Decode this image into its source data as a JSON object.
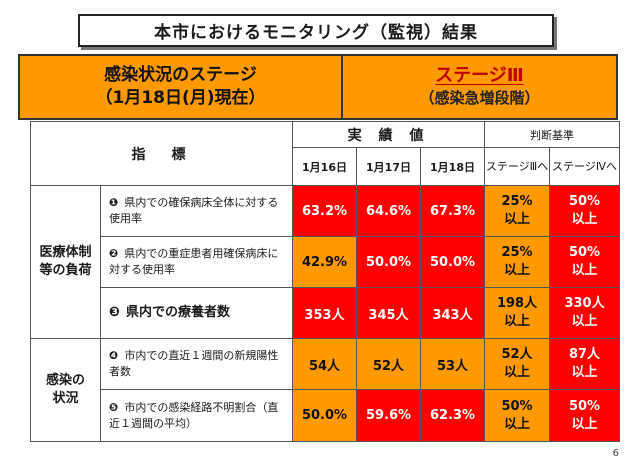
{
  "title": "本市におけるモニタリング（監視）結果",
  "banner": {
    "left_line1": "感染状況のステージ",
    "left_line2": "（1月18日(月)現在）",
    "stage_name": "ステージⅢ",
    "stage_sub": "（感染急増段階）"
  },
  "headers": {
    "indicator": "指　標",
    "actual": "実 績 値",
    "criteria": "判断基準",
    "dates": [
      "1月16日",
      "1月17日",
      "1月18日"
    ],
    "stage3_to": "ステージⅢへ",
    "stage4_to": "ステージⅣへ"
  },
  "categories": {
    "medical": [
      "医療体制",
      "等の負荷"
    ],
    "infection": [
      "感染の",
      "状況"
    ]
  },
  "rows": [
    {
      "num": "❶",
      "label": "県内での確保病床全体に対する使用率",
      "v1": "63.2%",
      "v2": "64.6%",
      "v3": "67.3%",
      "s3": [
        "25%",
        "以上"
      ],
      "s4": [
        "50%",
        "以上"
      ]
    },
    {
      "num": "❷",
      "label": "県内での重症患者用確保病床に対する使用率",
      "v1": "42.9%",
      "v2": "50.0%",
      "v3": "50.0%",
      "s3": [
        "25%",
        "以上"
      ],
      "s4": [
        "50%",
        "以上"
      ]
    },
    {
      "num": "❸",
      "label": "県内での療養者数",
      "v1": "353人",
      "v2": "345人",
      "v3": "343人",
      "s3": [
        "198人",
        "以上"
      ],
      "s4": [
        "330人",
        "以上"
      ]
    },
    {
      "num": "❹",
      "label": "市内での直近１週間の新規陽性者数",
      "v1": "54人",
      "v2": "52人",
      "v3": "53人",
      "s3": [
        "52人",
        "以上"
      ],
      "s4": [
        "87人",
        "以上"
      ]
    },
    {
      "num": "❺",
      "label": "市内での感染経路不明割合（直近１週間の平均）",
      "v1": "50.0%",
      "v2": "59.6%",
      "v3": "62.3%",
      "s3": [
        "50%",
        "以上"
      ],
      "s4": [
        "50%",
        "以上"
      ]
    }
  ],
  "colors": {
    "red": "#ff0000",
    "orange": "#ff9900"
  },
  "page_number": "6"
}
